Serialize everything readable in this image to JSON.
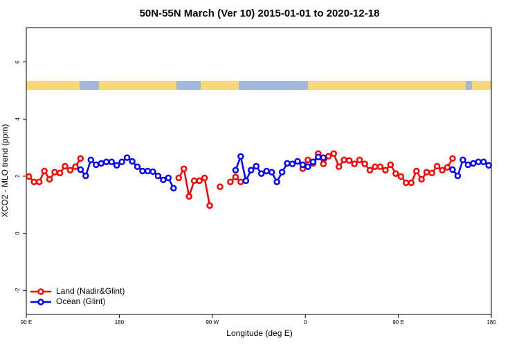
{
  "chart_data": {
    "type": "line",
    "title": "50N-55N March (Ver 10)   2015-01-01 to 2020-12-18",
    "x_label": "Longitude (deg E)",
    "y_label": "XCO2 - MLO trend (ppm)",
    "x": [
      92.5,
      97.5,
      102.5,
      107.5,
      112.5,
      117.5,
      122.5,
      127.5,
      132.5,
      137.5,
      142.5,
      147.5,
      152.5,
      157.5,
      162.5,
      167.5,
      172.5,
      177.5,
      182.5,
      187.5,
      192.5,
      197.5,
      202.5,
      207.5,
      212.5,
      217.5,
      222.5,
      227.5,
      232.5,
      237.5,
      242.5,
      247.5,
      252.5,
      257.5,
      262.5,
      267.5,
      272.5,
      277.5,
      282.5,
      287.5,
      292.5,
      297.5,
      302.5,
      307.5,
      312.5,
      317.5,
      322.5,
      327.5,
      332.5,
      337.5,
      342.5,
      347.5,
      352.5,
      357.5,
      362.5,
      367.5,
      372.5,
      377.5,
      382.5,
      387.5,
      392.5,
      397.5,
      402.5,
      407.5,
      412.5,
      417.5,
      422.5,
      427.5,
      432.5,
      437.5,
      442.5,
      447.5,
      452.5,
      457.5,
      462.5,
      467.5,
      472.5,
      477.5,
      482.5,
      487.5,
      492.5,
      497.5,
      502.5,
      507.5,
      512.5,
      517.5,
      522.5,
      527.5,
      532.5,
      537.5
    ],
    "series": [
      {
        "name": "Land (Nadir&Glint)",
        "color": "#ff0000",
        "values": [
          1.99,
          1.8,
          1.8,
          2.18,
          1.89,
          2.14,
          2.11,
          2.35,
          2.21,
          2.33,
          2.62,
          null,
          null,
          null,
          null,
          null,
          null,
          null,
          null,
          null,
          null,
          null,
          null,
          null,
          null,
          null,
          null,
          null,
          null,
          1.94,
          2.26,
          1.29,
          1.84,
          1.84,
          1.94,
          0.97,
          null,
          1.63,
          null,
          1.8,
          1.97,
          1.8,
          null,
          null,
          null,
          null,
          null,
          null,
          null,
          null,
          null,
          null,
          null,
          2.26,
          2.57,
          2.45,
          2.79,
          2.43,
          2.7,
          2.79,
          2.33,
          2.57,
          2.55,
          2.43,
          2.57,
          2.43,
          2.21,
          2.33,
          2.33,
          2.21,
          2.4,
          2.09,
          1.99,
          1.77,
          1.77,
          2.18,
          1.89,
          2.14,
          2.11,
          2.35,
          2.21,
          2.31,
          2.62,
          null,
          null,
          null,
          null,
          null,
          null,
          null
        ]
      },
      {
        "name": "Ocean (Glint)",
        "color": "#0000ff",
        "values": [
          null,
          null,
          null,
          null,
          null,
          null,
          null,
          null,
          null,
          null,
          2.23,
          2.01,
          2.57,
          2.4,
          2.45,
          2.5,
          2.5,
          2.38,
          2.5,
          2.65,
          2.52,
          2.33,
          2.18,
          2.18,
          2.16,
          2.01,
          1.87,
          1.94,
          1.58,
          null,
          null,
          null,
          null,
          null,
          null,
          null,
          null,
          null,
          null,
          null,
          2.21,
          2.69,
          1.84,
          2.21,
          2.35,
          2.09,
          2.18,
          2.14,
          1.8,
          2.14,
          2.45,
          2.43,
          2.52,
          2.4,
          2.33,
          2.5,
          2.67,
          2.65,
          null,
          null,
          null,
          null,
          null,
          null,
          null,
          null,
          null,
          null,
          null,
          null,
          null,
          null,
          null,
          null,
          null,
          null,
          null,
          null,
          null,
          null,
          null,
          null,
          2.23,
          2.01,
          2.57,
          2.4,
          2.45,
          2.5,
          2.5,
          2.38
        ]
      }
    ],
    "xlim": [
      90,
      540
    ],
    "xticks": [
      {
        "value": 90,
        "label": "90 E"
      },
      180,
      {
        "value": 270,
        "label": "90 W"
      },
      {
        "value": 360,
        "label": "0"
      },
      {
        "value": 450,
        "label": "90 E"
      },
      {
        "value": 540,
        "label": "180"
      }
    ],
    "ylim": [
      -2.84,
      7.2
    ],
    "yticks": [
      -2,
      0,
      2,
      4,
      6
    ],
    "legend": "bottom-left"
  }
}
